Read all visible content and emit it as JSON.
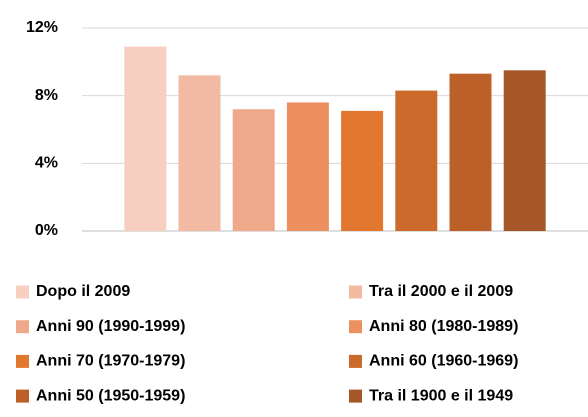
{
  "chart_data": {
    "type": "bar",
    "categories": [
      null
    ],
    "series": [
      {
        "name": "Dopo il 2009",
        "color": "#f6cfc0",
        "values": [
          10.9
        ]
      },
      {
        "name": "Tra il 2000 e il 2009",
        "color": "#f2b9a3",
        "values": [
          9.2
        ]
      },
      {
        "name": "Anni 90 (1990-1999)",
        "color": "#eea98a",
        "values": [
          7.2
        ]
      },
      {
        "name": "Anni 80 (1980-1989)",
        "color": "#ec9060",
        "values": [
          7.6
        ]
      },
      {
        "name": "Anni 70 (1970-1979)",
        "color": "#e2782f",
        "values": [
          7.1
        ]
      },
      {
        "name": "Anni 60 (1960-1969)",
        "color": "#cc6a2c",
        "values": [
          8.3
        ]
      },
      {
        "name": "Anni 50 (1950-1959)",
        "color": "#bc5f28",
        "values": [
          9.3
        ]
      },
      {
        "name": "Tra il 1900 e il 1949",
        "color": "#a5572a",
        "values": [
          9.5
        ]
      }
    ],
    "ylim": [
      0,
      12
    ],
    "yticks": [
      {
        "value": 0,
        "label": "0%"
      },
      {
        "value": 4,
        "label": "4%"
      },
      {
        "value": 8,
        "label": "8%"
      },
      {
        "value": 12,
        "label": "12%"
      }
    ],
    "grid": true,
    "legend": "bottom"
  }
}
